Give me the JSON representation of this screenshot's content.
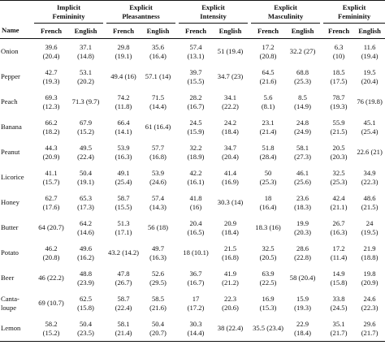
{
  "table": {
    "groups": [
      {
        "line1": "Implicit",
        "line2": "Femininity"
      },
      {
        "line1": "Explicit",
        "line2": "Pleasantness"
      },
      {
        "line1": "Explicit",
        "line2": "Intensity"
      },
      {
        "line1": "Explicit",
        "line2": "Masculinity"
      },
      {
        "line1": "Explicit",
        "line2": "Femininity"
      }
    ],
    "name_header": "Name",
    "lang_french": "French",
    "lang_english": "English",
    "rows": [
      {
        "name": "Onion",
        "cells": [
          {
            "v": "39.6",
            "sd": "(20.4)"
          },
          {
            "v": "37.1",
            "sd": "(14.8)"
          },
          {
            "v": "29.8",
            "sd": "(19.1)"
          },
          {
            "v": "35.6",
            "sd": "(16.4)"
          },
          {
            "v": "57.4",
            "sd": "(13.1)"
          },
          {
            "v": "51 (19.4)",
            "sd": ""
          },
          {
            "v": "17.2",
            "sd": "(20.8)"
          },
          {
            "v": "32.2 (27)",
            "sd": ""
          },
          {
            "v": "6.3",
            "sd": "(10)"
          },
          {
            "v": "11.6",
            "sd": "(19.4)"
          }
        ]
      },
      {
        "name": "Pepper",
        "cells": [
          {
            "v": "42.7",
            "sd": "(19.3)"
          },
          {
            "v": "53.1",
            "sd": "(20.2)"
          },
          {
            "v": "49.4 (16)",
            "sd": ""
          },
          {
            "v": "57.1 (14)",
            "sd": ""
          },
          {
            "v": "39.7",
            "sd": "(15.5)"
          },
          {
            "v": "34.7 (23)",
            "sd": ""
          },
          {
            "v": "64.5",
            "sd": "(21.6)"
          },
          {
            "v": "68.8",
            "sd": "(25.3)"
          },
          {
            "v": "18.5",
            "sd": "(17.5)"
          },
          {
            "v": "19.5",
            "sd": "(20.4)"
          }
        ]
      },
      {
        "name": "Peach",
        "cells": [
          {
            "v": "69.3",
            "sd": "(12.3)"
          },
          {
            "v": "71.3 (9.7)",
            "sd": ""
          },
          {
            "v": "74.2",
            "sd": "(11.8)"
          },
          {
            "v": "71.5",
            "sd": "(14.4)"
          },
          {
            "v": "28.2",
            "sd": "(16.7)"
          },
          {
            "v": "34.1",
            "sd": "(22.2)"
          },
          {
            "v": "5.6",
            "sd": "(8.1)"
          },
          {
            "v": "8.5",
            "sd": "(14.9)"
          },
          {
            "v": "78.7",
            "sd": "(19.3)"
          },
          {
            "v": "76 (19.8)",
            "sd": ""
          }
        ]
      },
      {
        "name": "Banana",
        "cells": [
          {
            "v": "66.2",
            "sd": "(18.2)"
          },
          {
            "v": "67.9",
            "sd": "(15.2)"
          },
          {
            "v": "66.4",
            "sd": "(14.1)"
          },
          {
            "v": "61 (16.4)",
            "sd": ""
          },
          {
            "v": "24.5",
            "sd": "(15.9)"
          },
          {
            "v": "24.2",
            "sd": "(18.4)"
          },
          {
            "v": "23.1",
            "sd": "(21.4)"
          },
          {
            "v": "24.8",
            "sd": "(24.9)"
          },
          {
            "v": "55.9",
            "sd": "(21.5)"
          },
          {
            "v": "45.1",
            "sd": "(25.4)"
          }
        ]
      },
      {
        "name": "Peanut",
        "cells": [
          {
            "v": "44.3",
            "sd": "(20.9)"
          },
          {
            "v": "49.5",
            "sd": "(22.4)"
          },
          {
            "v": "53.9",
            "sd": "(16.3)"
          },
          {
            "v": "57.7",
            "sd": "(16.8)"
          },
          {
            "v": "32.2",
            "sd": "(18.9)"
          },
          {
            "v": "34.7",
            "sd": "(20.4)"
          },
          {
            "v": "51.8",
            "sd": "(28.4)"
          },
          {
            "v": "58.1",
            "sd": "(27.3)"
          },
          {
            "v": "20.5",
            "sd": "(20.3)"
          },
          {
            "v": "22.6 (21)",
            "sd": ""
          }
        ]
      },
      {
        "name": "Licorice",
        "cells": [
          {
            "v": "41.1",
            "sd": "(15.7)"
          },
          {
            "v": "50.4",
            "sd": "(19.1)"
          },
          {
            "v": "49.1",
            "sd": "(25.4)"
          },
          {
            "v": "53.9",
            "sd": "(24.6)"
          },
          {
            "v": "42.2",
            "sd": "(16.1)"
          },
          {
            "v": "41.4",
            "sd": "(16.9)"
          },
          {
            "v": "50",
            "sd": "(25.3)"
          },
          {
            "v": "46.1",
            "sd": "(25.6)"
          },
          {
            "v": "32.5",
            "sd": "(25.3)"
          },
          {
            "v": "34.9",
            "sd": "(22.3)"
          }
        ]
      },
      {
        "name": "Honey",
        "cells": [
          {
            "v": "62.7",
            "sd": "(17.6)"
          },
          {
            "v": "65.3",
            "sd": "(17.3)"
          },
          {
            "v": "58.7",
            "sd": "(15.5)"
          },
          {
            "v": "57.4",
            "sd": "(14.3)"
          },
          {
            "v": "41.8",
            "sd": "(16)"
          },
          {
            "v": "30.3 (14)",
            "sd": ""
          },
          {
            "v": "18",
            "sd": "(16.4)"
          },
          {
            "v": "23.6",
            "sd": "(18.3)"
          },
          {
            "v": "42.4",
            "sd": "(21.1)"
          },
          {
            "v": "48.6",
            "sd": "(21.5)"
          }
        ]
      },
      {
        "name": "Butter",
        "cells": [
          {
            "v": "64 (20.7)",
            "sd": ""
          },
          {
            "v": "64.2",
            "sd": "(14.6)"
          },
          {
            "v": "51.3",
            "sd": "(17.1)"
          },
          {
            "v": "56 (18)",
            "sd": ""
          },
          {
            "v": "20.4",
            "sd": "(16.5)"
          },
          {
            "v": "20.9",
            "sd": "(18.4)"
          },
          {
            "v": "18.3 (16)",
            "sd": ""
          },
          {
            "v": "19.9",
            "sd": "(20.3)"
          },
          {
            "v": "26.7",
            "sd": "(16.3)"
          },
          {
            "v": "24",
            "sd": "(19.5)"
          }
        ]
      },
      {
        "name": "Potato",
        "cells": [
          {
            "v": "46.2",
            "sd": "(20.8)"
          },
          {
            "v": "49.6",
            "sd": "(16.2)"
          },
          {
            "v": "43.2 (14.2)",
            "sd": ""
          },
          {
            "v": "49.7",
            "sd": "(16.3)"
          },
          {
            "v": "18 (10.1)",
            "sd": ""
          },
          {
            "v": "21.5",
            "sd": "(16.8)"
          },
          {
            "v": "32.5",
            "sd": "(20.5)"
          },
          {
            "v": "28.6",
            "sd": "(22.8)"
          },
          {
            "v": "17.2",
            "sd": "(11.4)"
          },
          {
            "v": "21.9",
            "sd": "(18.8)"
          }
        ]
      },
      {
        "name": "Beer",
        "cells": [
          {
            "v": "46 (22.2)",
            "sd": ""
          },
          {
            "v": "48.8",
            "sd": "(23.9)"
          },
          {
            "v": "47.8",
            "sd": "(26.7)"
          },
          {
            "v": "52.6",
            "sd": "(29.5)"
          },
          {
            "v": "36.7",
            "sd": "(16.7)"
          },
          {
            "v": "41.9",
            "sd": "(21.2)"
          },
          {
            "v": "63.9",
            "sd": "(22.5)"
          },
          {
            "v": "58 (20.4)",
            "sd": ""
          },
          {
            "v": "14.9",
            "sd": "(15.8)"
          },
          {
            "v": "19.8",
            "sd": "(20.9)"
          }
        ]
      },
      {
        "name": "Canta-\nloupe",
        "cells": [
          {
            "v": "69 (10.7)",
            "sd": ""
          },
          {
            "v": "62.5",
            "sd": "(15.8)"
          },
          {
            "v": "58.7",
            "sd": "(22.4)"
          },
          {
            "v": "58.5",
            "sd": "(21.6)"
          },
          {
            "v": "17",
            "sd": "(17.2)"
          },
          {
            "v": "22.3",
            "sd": "(20.6)"
          },
          {
            "v": "16.9",
            "sd": "(15.3)"
          },
          {
            "v": "15.9",
            "sd": "(19.3)"
          },
          {
            "v": "33.8",
            "sd": "(24.5)"
          },
          {
            "v": "24.6",
            "sd": "(22.3)"
          }
        ]
      },
      {
        "name": "Lemon",
        "cells": [
          {
            "v": "58.2",
            "sd": "(15.2)"
          },
          {
            "v": "50.4",
            "sd": "(23.5)"
          },
          {
            "v": "58.1",
            "sd": "(21.4)"
          },
          {
            "v": "50.4",
            "sd": "(20.7)"
          },
          {
            "v": "30.3",
            "sd": "(14.4)"
          },
          {
            "v": "38 (22.4)",
            "sd": ""
          },
          {
            "v": "35.5 (23.4)",
            "sd": ""
          },
          {
            "v": "22.9",
            "sd": "(18.4)"
          },
          {
            "v": "35.1",
            "sd": "(21.7)"
          },
          {
            "v": "29.6",
            "sd": "(21.7)"
          }
        ]
      }
    ]
  }
}
